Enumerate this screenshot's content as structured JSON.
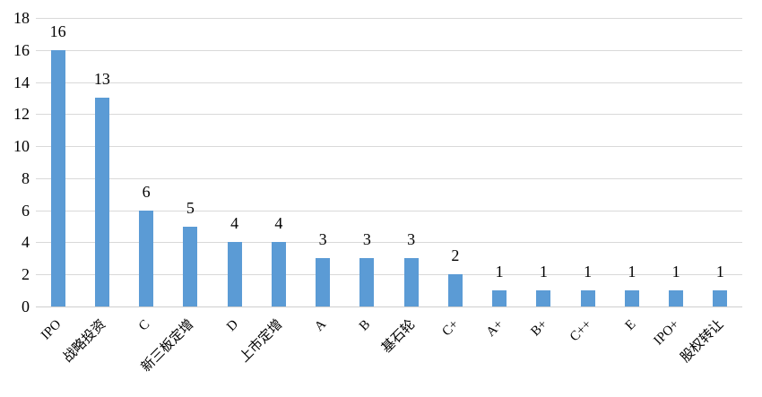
{
  "chart_data": {
    "type": "bar",
    "title": "",
    "xlabel": "",
    "ylabel": "",
    "categories": [
      "IPO",
      "战略投资",
      "C",
      "新三板定增",
      "D",
      "上市定增",
      "A",
      "B",
      "基石轮",
      "C+",
      "A+",
      "B+",
      "C++",
      "E",
      "IPO+",
      "股权转让"
    ],
    "values": [
      16,
      13,
      6,
      5,
      4,
      4,
      3,
      3,
      3,
      2,
      1,
      1,
      1,
      1,
      1,
      1
    ],
    "ylim": [
      0,
      18
    ],
    "yticks": [
      0,
      2,
      4,
      6,
      8,
      10,
      12,
      14,
      16,
      18
    ],
    "grid": "horizontal",
    "legend": "none",
    "data_labels": true,
    "x_label_rotation_deg": 45,
    "colors": {
      "bar": "#5B9BD5",
      "gridline": "#D9D9D9",
      "axis_line": "#CECECE",
      "text": "#000000",
      "background": "#FFFFFF"
    }
  }
}
